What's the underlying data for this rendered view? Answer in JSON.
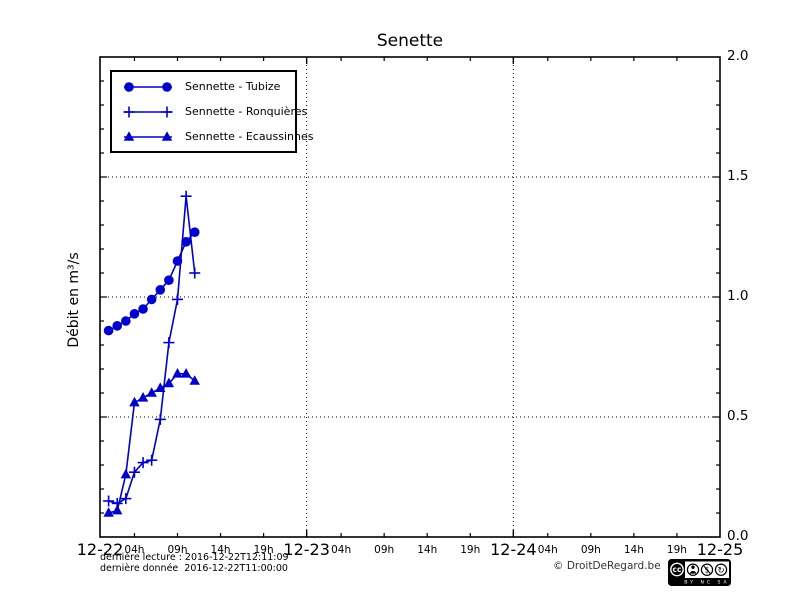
{
  "title": "Senette",
  "ylabel": "Débit en m³/s",
  "legend": [
    {
      "label": "Sennette - Tubize",
      "marker": "circle"
    },
    {
      "label": "Sennette - Ronquières",
      "marker": "plus"
    },
    {
      "label": "Sennette - Ecaussinnes",
      "marker": "triangle"
    }
  ],
  "axes": {
    "y_ticks": [
      "2.0",
      "1.5",
      "1.0",
      "0.5",
      "0.0"
    ],
    "x_major": [
      "12-22",
      "12-23",
      "12-24",
      "12-25"
    ],
    "x_minor": [
      "04h",
      "09h",
      "14h",
      "19h"
    ]
  },
  "footer": {
    "last_read": "dernière lecture : 2016-12-22T12:11:09",
    "last_data": "dernière donnée  2016-12-22T11:00:00",
    "copyright": "© DroitDeRegard.be",
    "license": {
      "cc": "cc",
      "labels": "BY NC SA"
    }
  },
  "colors": {
    "series": "#0000cc",
    "frame": "#000000",
    "background": "#ffffff"
  },
  "chart_data": {
    "type": "line",
    "title": "Senette",
    "xlabel": "",
    "ylabel": "Débit en m³/s",
    "ylim": [
      0.0,
      2.0
    ],
    "xlim_days": [
      "12-22",
      "12-25"
    ],
    "x_is_time": true,
    "x_hours": [
      1,
      2,
      3,
      4,
      5,
      6,
      7,
      8,
      9,
      10,
      11
    ],
    "x_hour_labels": [
      "01:00",
      "02:00",
      "03:00",
      "04:00",
      "05:00",
      "06:00",
      "07:00",
      "08:00",
      "09:00",
      "10:00",
      "11:00"
    ],
    "series": [
      {
        "name": "Sennette - Tubize",
        "marker": "circle",
        "color": "#0000cc",
        "values": [
          0.86,
          0.88,
          0.9,
          0.93,
          0.95,
          0.99,
          1.03,
          1.07,
          1.15,
          1.23,
          1.27
        ]
      },
      {
        "name": "Sennette - Ronquières",
        "marker": "plus",
        "color": "#0000cc",
        "values": [
          0.15,
          0.14,
          0.16,
          0.27,
          0.31,
          0.32,
          0.49,
          0.81,
          0.99,
          1.42,
          1.1
        ]
      },
      {
        "name": "Sennette - Ecaussinnes",
        "marker": "triangle",
        "color": "#0000cc",
        "values": [
          0.1,
          0.11,
          0.26,
          0.56,
          0.58,
          0.6,
          0.62,
          0.64,
          0.68,
          0.68,
          0.65
        ]
      }
    ],
    "grid": {
      "h_lines": [
        0.5,
        1.0,
        1.5
      ],
      "v_lines_days": [
        1,
        2
      ],
      "style": "dotted"
    },
    "legend_position": "upper left",
    "tick_label_side_y": "right",
    "minor_x_tick_hours": [
      4,
      9,
      14,
      19
    ]
  }
}
